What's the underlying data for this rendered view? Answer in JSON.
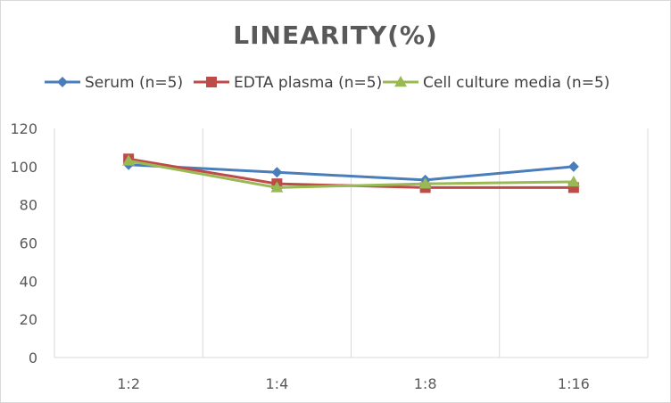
{
  "chart_data": {
    "type": "line",
    "title": "LINEARITY(%)",
    "xlabel": "",
    "ylabel": "",
    "categories": [
      "1:2",
      "1:4",
      "1:8",
      "1:16"
    ],
    "ylim": [
      0,
      120
    ],
    "yticks": [
      0,
      20,
      40,
      60,
      80,
      100,
      120
    ],
    "grid": "vertical",
    "legend_position": "top",
    "series": [
      {
        "name": "Serum (n=5)",
        "values": [
          101,
          97,
          93,
          100
        ],
        "color": "#4a7ebb",
        "marker": "diamond"
      },
      {
        "name": "EDTA plasma (n=5)",
        "values": [
          104,
          91,
          89,
          89
        ],
        "color": "#be4b48",
        "marker": "square"
      },
      {
        "name": "Cell culture media (n=5)",
        "values": [
          103,
          89,
          91,
          92
        ],
        "color": "#98b954",
        "marker": "triangle"
      }
    ]
  }
}
